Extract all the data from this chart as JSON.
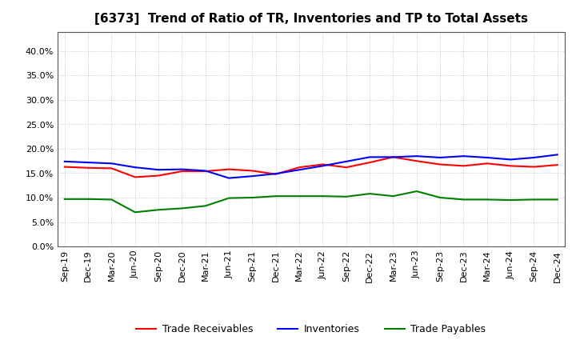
{
  "title": "[6373]  Trend of Ratio of TR, Inventories and TP to Total Assets",
  "x_labels": [
    "Sep-19",
    "Dec-19",
    "Mar-20",
    "Jun-20",
    "Sep-20",
    "Dec-20",
    "Mar-21",
    "Jun-21",
    "Sep-21",
    "Dec-21",
    "Mar-22",
    "Jun-22",
    "Sep-22",
    "Dec-22",
    "Mar-23",
    "Jun-23",
    "Sep-23",
    "Dec-23",
    "Mar-24",
    "Jun-24",
    "Sep-24",
    "Dec-24"
  ],
  "trade_receivables": [
    0.163,
    0.161,
    0.16,
    0.142,
    0.145,
    0.154,
    0.154,
    0.158,
    0.155,
    0.148,
    0.162,
    0.168,
    0.162,
    0.172,
    0.183,
    0.175,
    0.168,
    0.165,
    0.17,
    0.165,
    0.163,
    0.167
  ],
  "inventories": [
    0.174,
    0.172,
    0.17,
    0.162,
    0.157,
    0.158,
    0.155,
    0.14,
    0.144,
    0.149,
    0.157,
    0.165,
    0.174,
    0.183,
    0.183,
    0.185,
    0.182,
    0.185,
    0.182,
    0.178,
    0.182,
    0.188
  ],
  "trade_payables": [
    0.097,
    0.097,
    0.096,
    0.07,
    0.075,
    0.078,
    0.083,
    0.099,
    0.1,
    0.103,
    0.103,
    0.103,
    0.102,
    0.108,
    0.103,
    0.113,
    0.1,
    0.096,
    0.096,
    0.095,
    0.096,
    0.096
  ],
  "tr_color": "#FF0000",
  "inv_color": "#0000FF",
  "tp_color": "#008000",
  "ylim": [
    0.0,
    0.44
  ],
  "yticks": [
    0.0,
    0.05,
    0.1,
    0.15,
    0.2,
    0.25,
    0.3,
    0.35,
    0.4
  ],
  "background_color": "#FFFFFF",
  "grid_color": "#BBBBBB",
  "line_width": 1.5,
  "title_fontsize": 11,
  "tick_fontsize": 8,
  "legend_fontsize": 9
}
